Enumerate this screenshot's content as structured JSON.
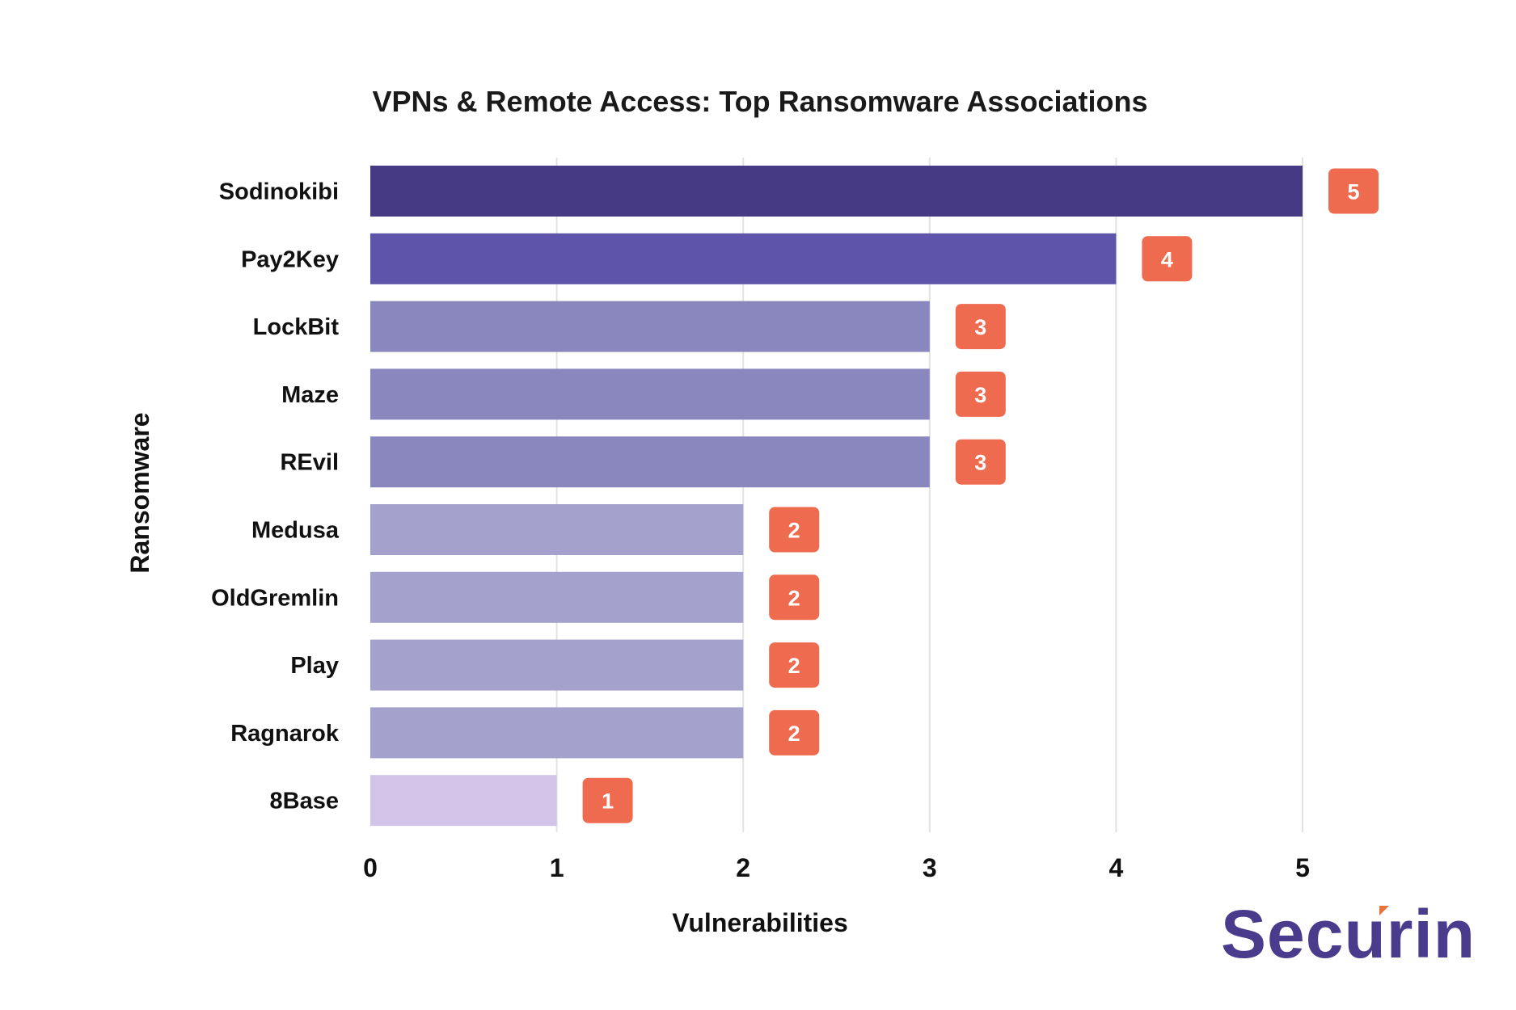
{
  "brand": {
    "name": "Securin",
    "text_color": "#4a3b8c",
    "accent_color": "#e8743b"
  },
  "chart_data": {
    "type": "bar",
    "orientation": "horizontal",
    "title": "VPNs & Remote Access: Top Ransomware Associations",
    "xlabel": "Vulnerabilities",
    "ylabel": "Ransomware",
    "categories": [
      "Sodinokibi",
      "Pay2Key",
      "LockBit",
      "Maze",
      "REvil",
      "Medusa",
      "OldGremlin",
      "Play",
      "Ragnarok",
      "8Base"
    ],
    "values": [
      5,
      4,
      3,
      3,
      3,
      2,
      2,
      2,
      2,
      1
    ],
    "xlim": [
      0,
      5
    ],
    "xticks": [
      0,
      1,
      2,
      3,
      4,
      5
    ],
    "grid": "vertical",
    "legend": "none",
    "data_labels": true,
    "colors": {
      "5": "#473a85",
      "4": "#5e55ab",
      "3": "#8a87bf",
      "2": "#a4a1cc",
      "1": "#d2c4e8",
      "label_bg": "#ef6b50",
      "grid": "#e2e2e2"
    }
  }
}
